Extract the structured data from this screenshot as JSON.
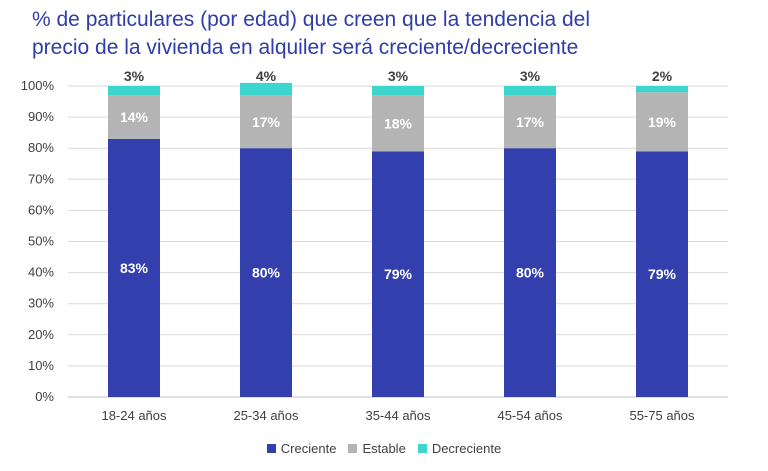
{
  "chart_data": {
    "type": "bar",
    "stacked": true,
    "title_line1": "% de particulares (por edad) que creen que la tendencia del",
    "title_line2": "precio de la vivienda en alquiler será creciente/decreciente",
    "categories": [
      "18-24 años",
      "25-34 años",
      "35-44 años",
      "45-54 años",
      "55-75 años"
    ],
    "y_ticks": [
      "0%",
      "10%",
      "20%",
      "30%",
      "40%",
      "50%",
      "60%",
      "70%",
      "80%",
      "90%",
      "100%"
    ],
    "ylim": [
      0,
      100
    ],
    "grid": true,
    "legend_position": "bottom",
    "series": [
      {
        "name": "Creciente",
        "color": "#333fad",
        "label_color": "#ffffff",
        "values": [
          83,
          80,
          79,
          80,
          79
        ],
        "labels": [
          "83%",
          "80%",
          "79%",
          "80%",
          "79%"
        ]
      },
      {
        "name": "Estable",
        "color": "#b4b4b4",
        "label_color": "#ffffff",
        "values": [
          14,
          17,
          18,
          17,
          19
        ],
        "labels": [
          "14%",
          "17%",
          "18%",
          "17%",
          "19%"
        ]
      },
      {
        "name": "Decreciente",
        "color": "#3dd6cf",
        "label_color": "#404040",
        "values": [
          3,
          4,
          3,
          3,
          2
        ],
        "labels": [
          "3%",
          "4%",
          "3%",
          "3%",
          "2%"
        ]
      }
    ]
  }
}
